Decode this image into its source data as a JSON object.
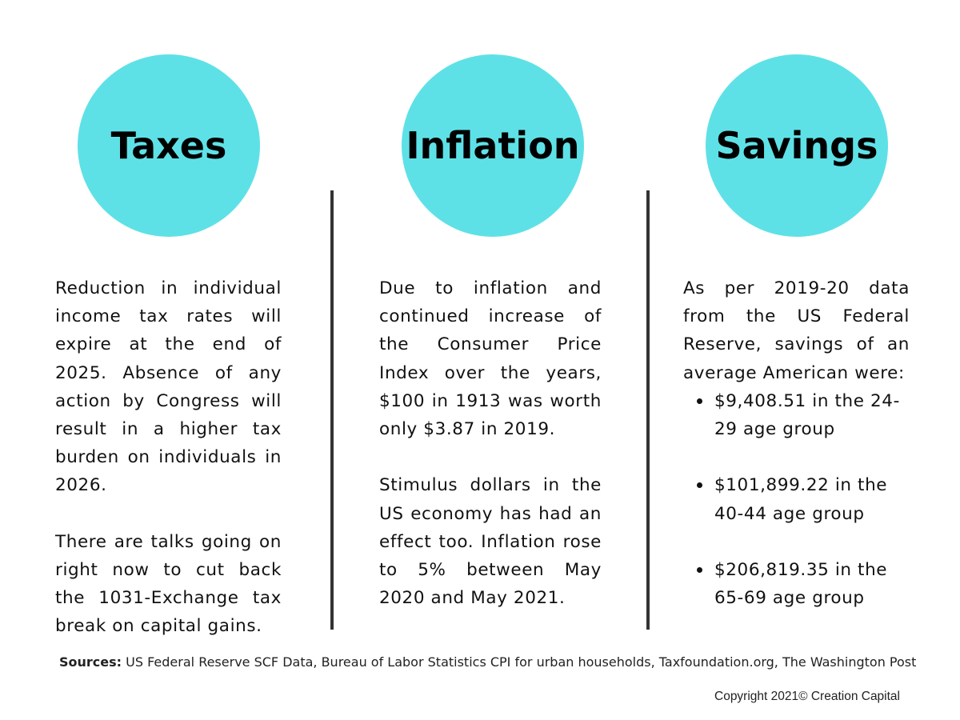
{
  "accent_color": "#5ee1e6",
  "columns": [
    {
      "title": "Taxes",
      "paragraphs": [
        "Reduction in individual income tax rates will expire at the end of 2025. Absence of any action by Congress will result in a higher tax burden on individuals in 2026.",
        "There are talks going on right now to cut back the 1031-Exchange tax break on capital gains."
      ]
    },
    {
      "title": "Inflation",
      "paragraphs": [
        "Due to inflation and continued increase of the Consumer Price Index over the years, $100 in 1913 was worth only $3.87 in 2019.",
        "Stimulus dollars in the US economy has had an effect too. Inflation rose to 5% between May 2020 and May 2021."
      ]
    },
    {
      "title": "Savings",
      "intro": "As per 2019-20 data from the US Federal Reserve, savings of an average American were:",
      "bullets": [
        "$9,408.51 in the 24-29 age group",
        "$101,899.22 in the 40-44 age group",
        "$206,819.35 in the 65-69 age group"
      ]
    }
  ],
  "footer": {
    "sources_label": "Sources:",
    "sources_text": " US Federal Reserve SCF Data, Bureau of Labor Statistics CPI for urban households, Taxfoundation.org, The Washington Post",
    "copyright": "Copyright 2021© Creation Capital"
  }
}
